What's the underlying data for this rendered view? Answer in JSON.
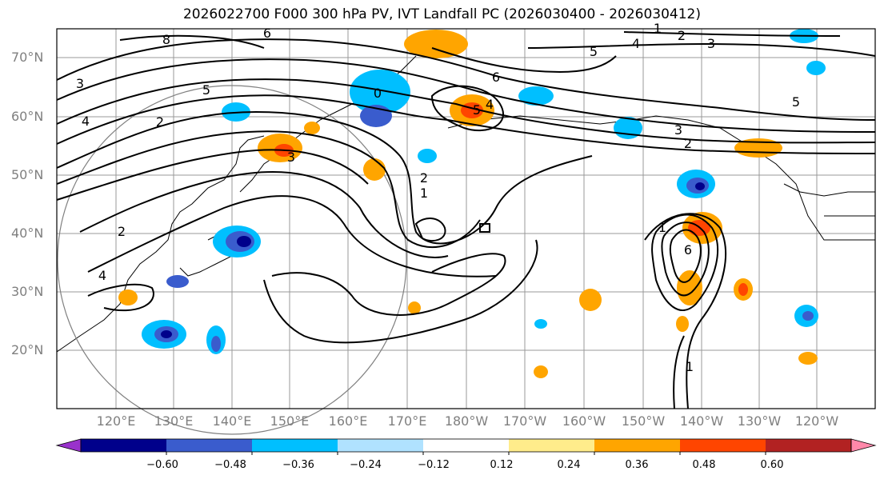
{
  "title": "2026022700 F000 300 hPa PV, IVT Landfall PC (2026030400 - 2026030412)",
  "lat_labels": [
    "70°N",
    "60°N",
    "50°N",
    "40°N",
    "30°N",
    "20°N"
  ],
  "lon_labels": [
    "120°E",
    "130°E",
    "140°E",
    "150°E",
    "160°E",
    "170°E",
    "180°W",
    "170°W",
    "160°W",
    "150°W",
    "140°W",
    "130°W",
    "120°W"
  ],
  "colorbar": {
    "colors": [
      "#9932cc",
      "#00008b",
      "#3a5ccd",
      "#00bfff",
      "#b0e2ff",
      "#ffffff",
      "#ffec8b",
      "#ffa500",
      "#ff4500",
      "#b22222",
      "#ff88aa"
    ],
    "tick_labels": [
      "−0.60",
      "−0.48",
      "−0.36",
      "−0.24",
      "−0.12",
      "0.12",
      "0.24",
      "0.36",
      "0.48",
      "0.60"
    ]
  },
  "contour_labels": [
    "8",
    "6",
    "1",
    "2",
    "3",
    "3",
    "4",
    "5",
    "4",
    "5",
    "6",
    "5",
    "4",
    "3",
    "2",
    "1",
    "2",
    "3",
    "4",
    "1",
    "2",
    "6",
    "1",
    "5",
    "2",
    "0"
  ],
  "colors": {
    "land_outline": "#000000",
    "grid": "#999999",
    "axis_label": "#7f7f7f"
  }
}
